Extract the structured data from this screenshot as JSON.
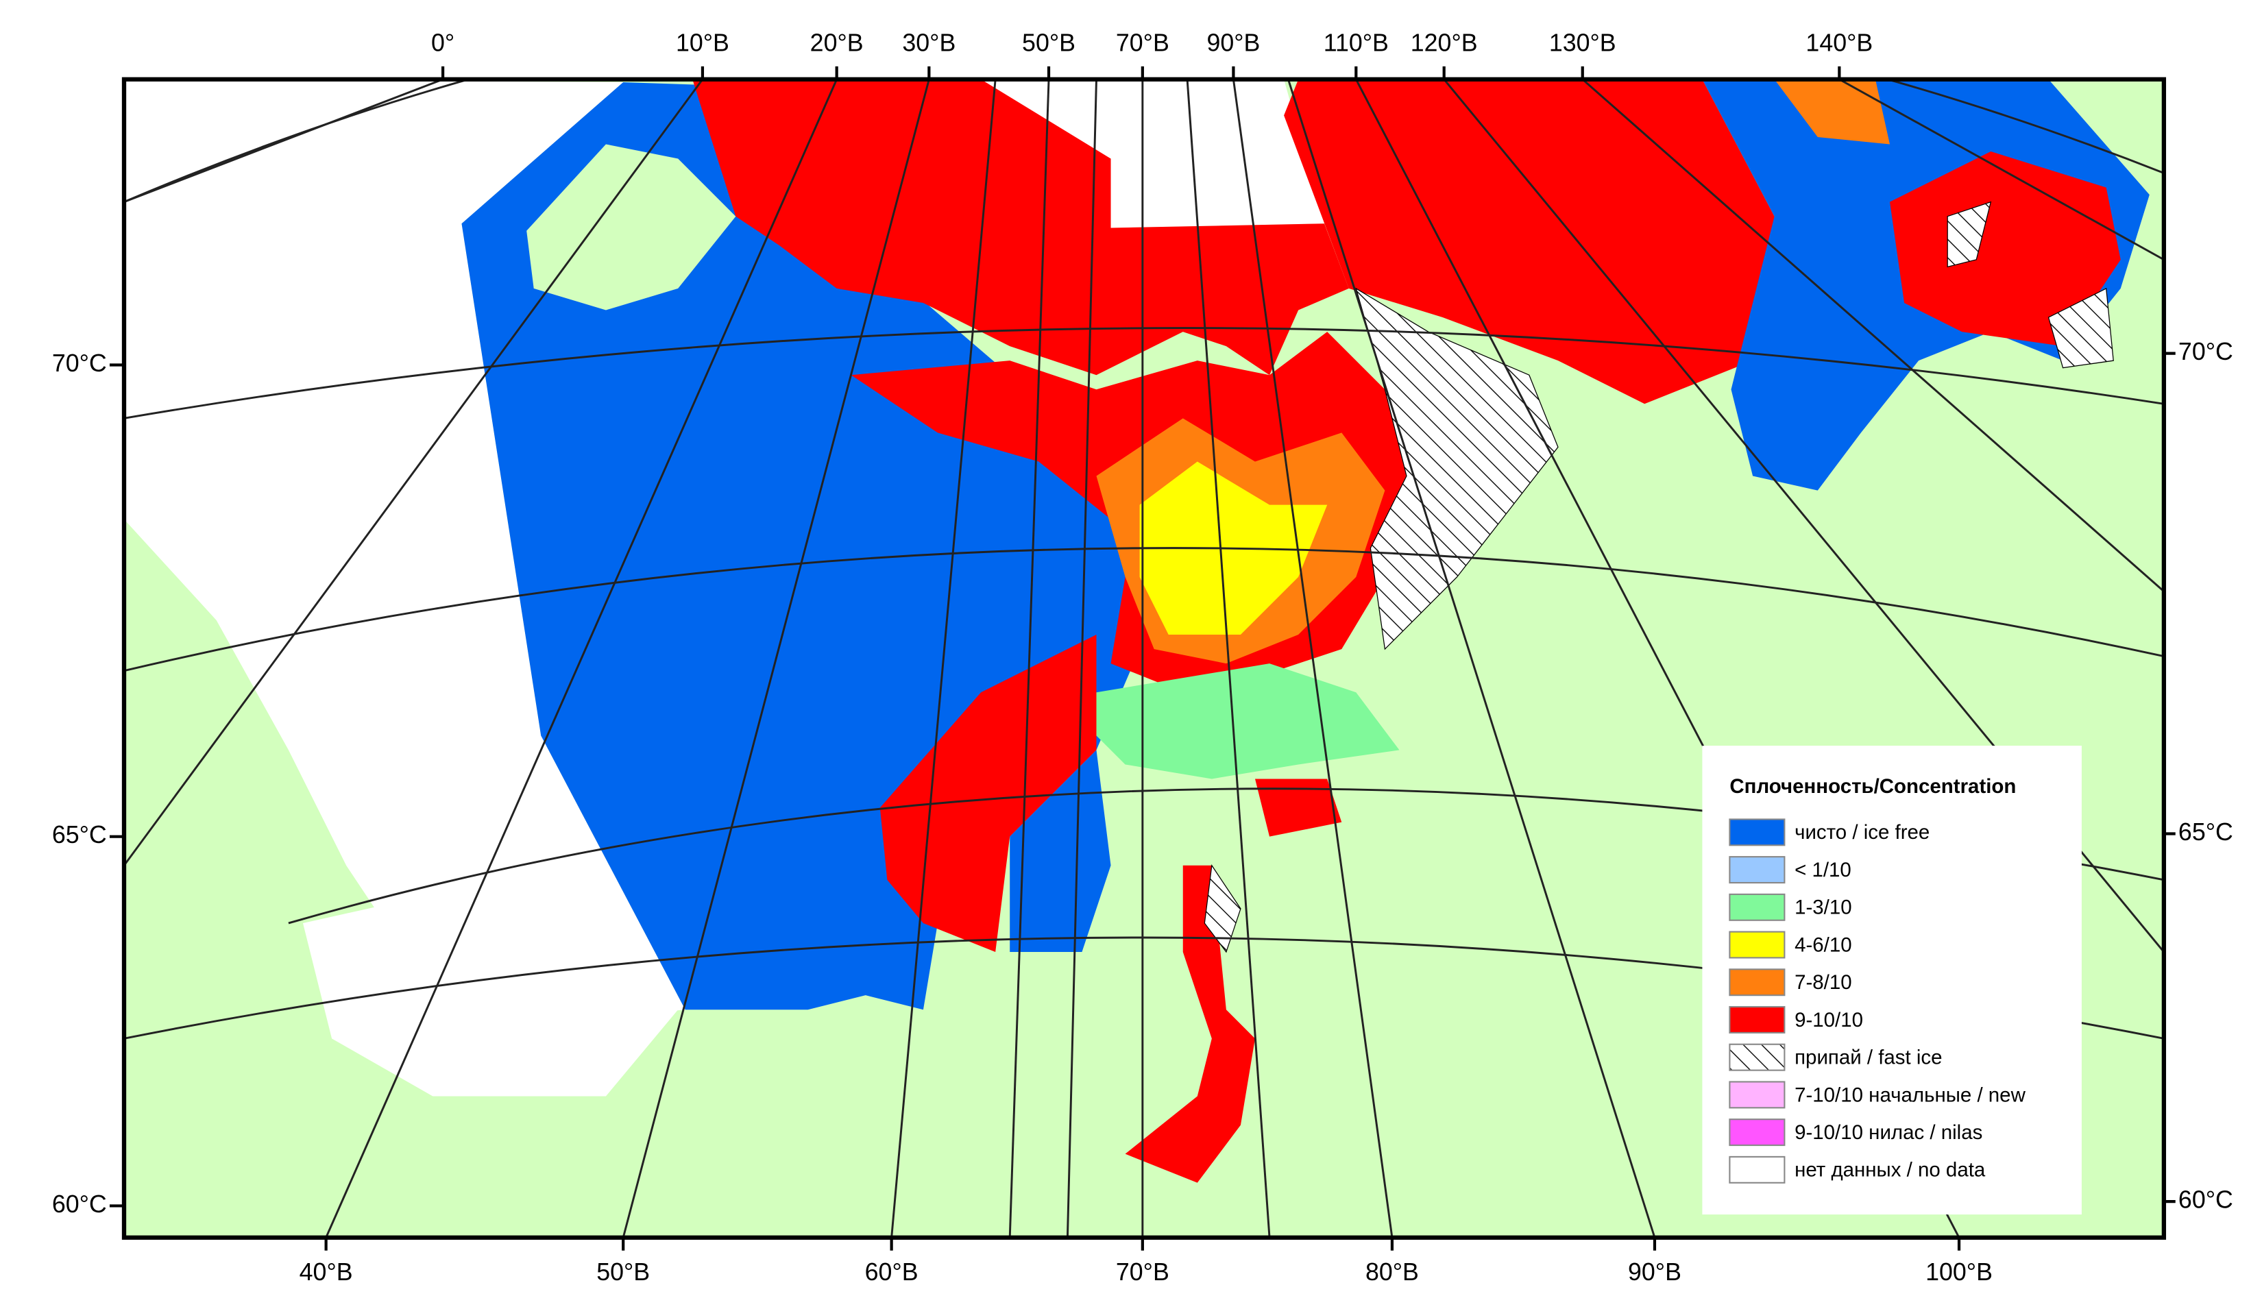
{
  "map": {
    "top_labels": [
      "0°",
      "10°В",
      "20°В",
      "30°В",
      "50°В",
      "70°В",
      "90°В",
      "110°В",
      "120°В",
      "130°В",
      "140°В"
    ],
    "bottom_labels": [
      "40°В",
      "50°В",
      "60°В",
      "70°В",
      "80°В",
      "90°В",
      "100°В"
    ],
    "left_labels": [
      "70°С",
      "65°С",
      "60°С"
    ],
    "right_labels": [
      "70°С",
      "65°С",
      "60°С"
    ],
    "legend": {
      "title": "Сплоченность/Concentration",
      "items": [
        "чисто / ice free",
        "< 1/10",
        "1-3/10",
        "4-6/10",
        "7-8/10",
        "9-10/10",
        "припай / fast ice",
        "7-10/10 начальные / new",
        "9-10/10 нилас / nilas",
        "нет данных / no data"
      ]
    }
  }
}
